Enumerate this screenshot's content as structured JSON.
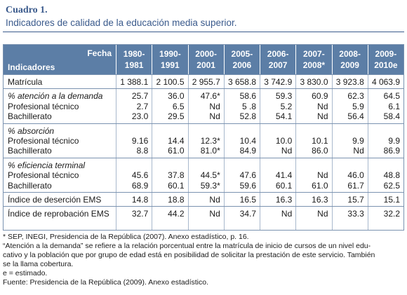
{
  "caption": {
    "number": "Cuadro 1.",
    "title": "Indicadores de calidad de la educación media superior."
  },
  "table": {
    "corner_top": "Fecha",
    "corner_bottom": "Indicadores",
    "columns": [
      [
        "1980-",
        "1981"
      ],
      [
        "1990-",
        "1991"
      ],
      [
        "2000-",
        "2001"
      ],
      [
        "2005-",
        "2006"
      ],
      [
        "2006-",
        "2007"
      ],
      [
        "2007-",
        "2008*"
      ],
      [
        "2008-",
        "2009"
      ],
      [
        "2009-",
        "2010e"
      ]
    ],
    "blocks": [
      {
        "lines": [
          {
            "label": "Matrícula",
            "italic": false,
            "values": [
              "1 388.1",
              "2 100.5",
              "2 955.7",
              "3 658.8",
              "3 742.9",
              "3 830.0",
              "3 923.8",
              "4 063.9"
            ]
          }
        ]
      },
      {
        "lines": [
          {
            "label": "% atención a la demanda",
            "italic": true,
            "values": [
              "25.7",
              "36.0",
              "47.6*",
              "58.6",
              "59.3",
              "60.9",
              "62.3",
              "64.5"
            ]
          },
          {
            "label": "Profesional técnico",
            "italic": false,
            "values": [
              "2.7",
              "6.5",
              "Nd",
              "5 .8",
              "5.2",
              "Nd",
              "5.9",
              "6.1"
            ]
          },
          {
            "label": "Bachillerato",
            "italic": false,
            "values": [
              "23.0",
              "29.5",
              "Nd",
              "52.8",
              "54.1",
              "Nd",
              "56.4",
              "58.4"
            ]
          }
        ]
      },
      {
        "lines": [
          {
            "label": "% absorción",
            "italic": true,
            "values": [
              "",
              "",
              "",
              "",
              "",
              "",
              "",
              ""
            ]
          },
          {
            "label": "Profesional técnico",
            "italic": false,
            "values": [
              "9.16",
              "14.4",
              "12.3*",
              "10.4",
              "10.0",
              "10.1",
              "9.9",
              "9.9"
            ]
          },
          {
            "label": "Bachillerato",
            "italic": false,
            "values": [
              "8.8",
              "61.0",
              "81.0*",
              "84.9",
              "Nd",
              "86.0",
              "Nd",
              "86.9"
            ]
          }
        ]
      },
      {
        "lines": [
          {
            "label": "% eficiencia terminal",
            "italic": true,
            "values": [
              "",
              "",
              "",
              "",
              "",
              "",
              "",
              ""
            ]
          },
          {
            "label": "Profesional técnico",
            "italic": false,
            "values": [
              "45.6",
              "37.8",
              "44.5*",
              "47.6",
              "41.4",
              "Nd",
              "46.0",
              "48.8"
            ]
          },
          {
            "label": "Bachillerato",
            "italic": false,
            "values": [
              "68.9",
              "60.1",
              "59.3*",
              "59.6",
              "60.1",
              "61.0",
              "61.7",
              "62.5"
            ]
          }
        ]
      },
      {
        "lines": [
          {
            "label": "Índice de deserción EMS",
            "italic": false,
            "values": [
              "14.8",
              "18.8",
              "Nd",
              "16.5",
              "16.3",
              "16.3",
              "15.7",
              "15.1"
            ]
          }
        ]
      },
      {
        "lines": [
          {
            "label": "Índice de reprobación EMS",
            "italic": false,
            "values": [
              "32.7",
              "44.2",
              "Nd",
              "34.7",
              "Nd",
              "Nd",
              "33.3",
              "32.2"
            ]
          }
        ]
      }
    ]
  },
  "notes": [
    "* SEP, INEGI, Presidencia de la República (2007). Anexo estadístico, p. 16.",
    "“Atención a la demanda” se refiere a la relación porcentual entre la matrícula de inicio de cursos de un nivel edu-",
    "cativo y la población que por grupo de edad está en posibilidad de solicitar la prestación de este servicio. También",
    "se la llama cobertura.",
    "e = estimado.",
    "Fuente: Presidencia de la República (2009). Anexo estadístico."
  ]
}
